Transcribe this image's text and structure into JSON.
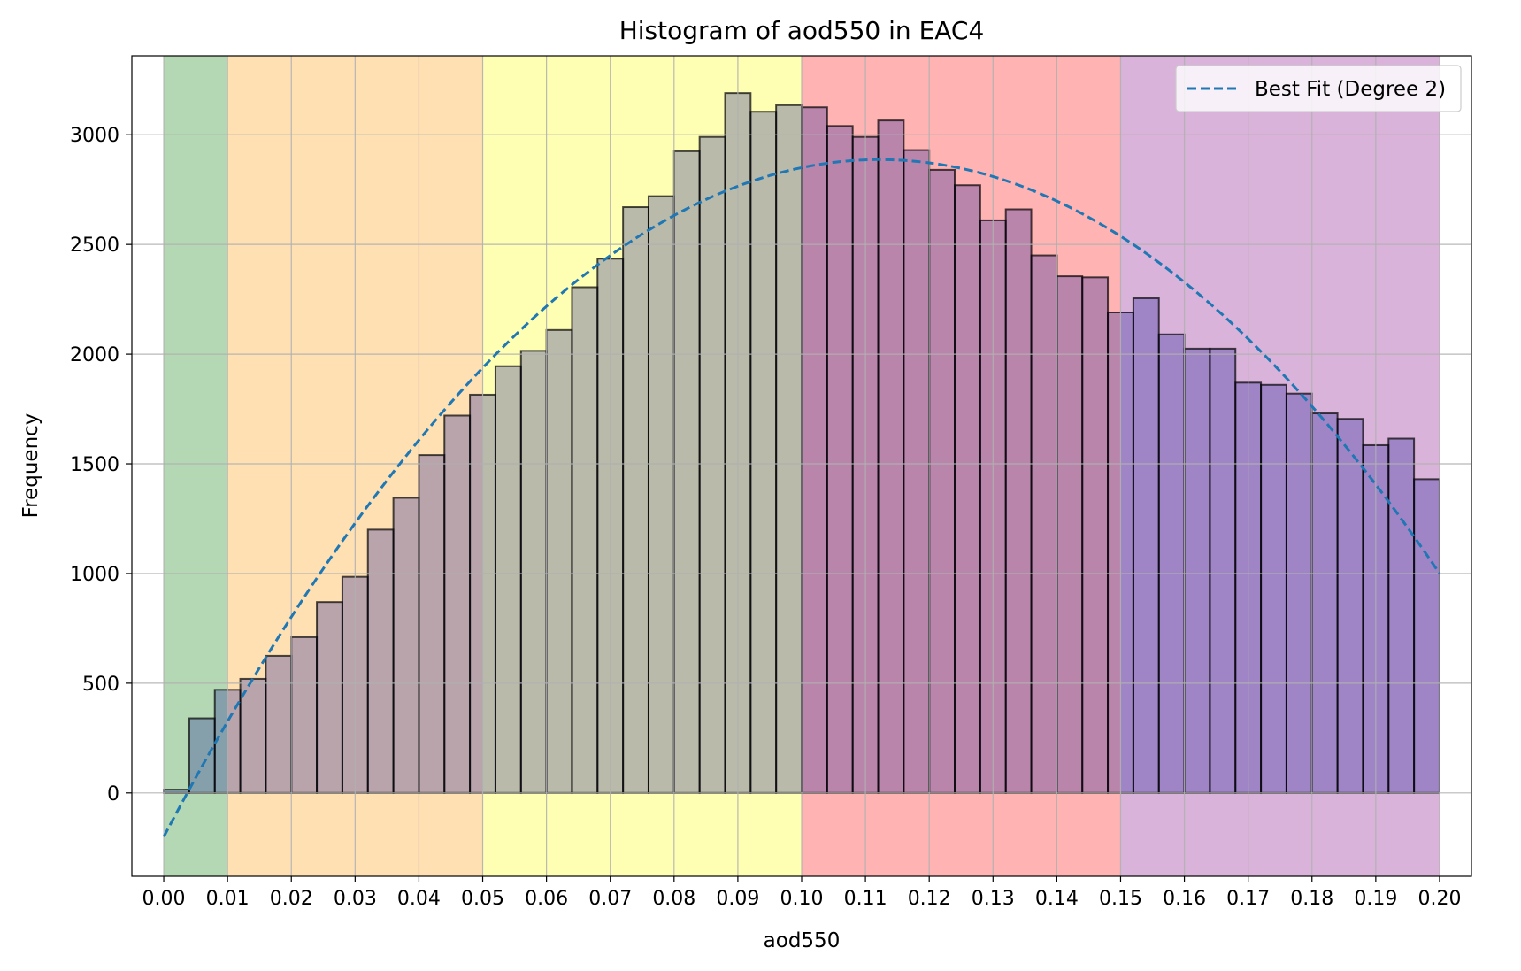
{
  "chart_data": {
    "type": "bar",
    "title": "Histogram of aod550 in EAC4",
    "xlabel": "aod550",
    "ylabel": "Frequency",
    "xlim": [
      -0.005,
      0.205
    ],
    "ylim": [
      -380,
      3360
    ],
    "grid": true,
    "legend_position": "top-right",
    "x_ticks": [
      "0.00",
      "0.01",
      "0.02",
      "0.03",
      "0.04",
      "0.05",
      "0.06",
      "0.07",
      "0.08",
      "0.09",
      "0.10",
      "0.11",
      "0.12",
      "0.13",
      "0.14",
      "0.15",
      "0.16",
      "0.17",
      "0.18",
      "0.19",
      "0.20"
    ],
    "y_ticks": [
      "0",
      "500",
      "1000",
      "1500",
      "2000",
      "2500",
      "3000"
    ],
    "bins": {
      "start": 0.0,
      "width": 0.004,
      "values": [
        15,
        340,
        470,
        520,
        625,
        710,
        870,
        985,
        1200,
        1345,
        1540,
        1720,
        1815,
        1945,
        2015,
        2110,
        2305,
        2435,
        2670,
        2720,
        2925,
        2990,
        3190,
        3105,
        3135,
        3125,
        3040,
        2990,
        3065,
        2930,
        2840,
        2770,
        2610,
        2660,
        2450,
        2355,
        2350,
        2190,
        2255,
        2090,
        2025,
        2025,
        1870,
        1860,
        1820,
        1730,
        1705,
        1585,
        1615,
        1430
      ]
    },
    "bands": [
      {
        "from": 0.0,
        "to": 0.01,
        "color": "#b3d8b3"
      },
      {
        "from": 0.01,
        "to": 0.05,
        "color": "#fee0b3"
      },
      {
        "from": 0.05,
        "to": 0.1,
        "color": "#ffffb3"
      },
      {
        "from": 0.1,
        "to": 0.15,
        "color": "#ffb3b3"
      },
      {
        "from": 0.15,
        "to": 0.2,
        "color": "#d9b3d9"
      }
    ],
    "bar_fill": {
      "color": "#1a1a99",
      "opacity": 0.3
    },
    "bar_edge_color": "#000000",
    "fit": {
      "name": "Best Fit (Degree 2)",
      "degree": 2,
      "coefficients": [
        -245000,
        55000,
        -200
      ],
      "x_range": [
        0.0,
        0.2
      ],
      "color": "#1f77b4",
      "style": "dashed"
    }
  }
}
